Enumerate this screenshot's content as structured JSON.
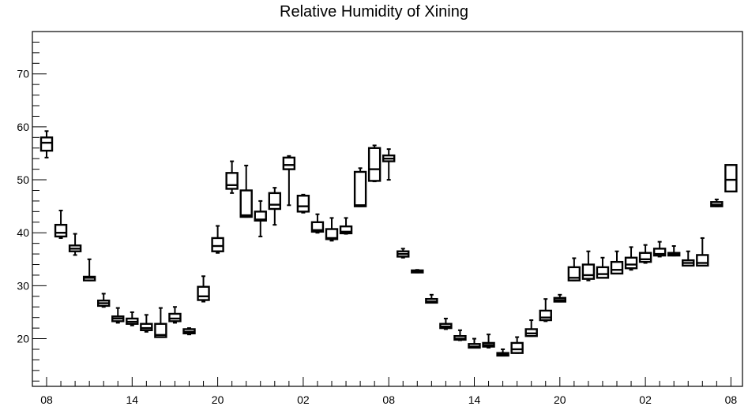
{
  "chart_data": {
    "type": "boxplot",
    "title": "Relative Humidity of Xining",
    "xlabel": "",
    "ylabel": "",
    "ylim": [
      11,
      78
    ],
    "yticks": [
      20,
      30,
      40,
      50,
      60,
      70
    ],
    "xticks": [
      {
        "x": 0,
        "label": "08"
      },
      {
        "x": 6,
        "label": "14"
      },
      {
        "x": 12,
        "label": "20"
      },
      {
        "x": 18,
        "label": "02"
      },
      {
        "x": 24,
        "label": "08"
      },
      {
        "x": 30,
        "label": "14"
      },
      {
        "x": 36,
        "label": "20"
      },
      {
        "x": 42,
        "label": "02"
      },
      {
        "x": 48,
        "label": "08"
      }
    ],
    "grid": false,
    "boxes": [
      {
        "x": 0,
        "whislo": 54.2,
        "q1": 55.5,
        "med": 57.0,
        "q3": 58.0,
        "whishi": 59.2
      },
      {
        "x": 1,
        "whislo": 39.0,
        "q1": 39.3,
        "med": 40.0,
        "q3": 41.5,
        "whishi": 44.2
      },
      {
        "x": 2,
        "whislo": 35.8,
        "q1": 36.5,
        "med": 37.0,
        "q3": 37.6,
        "whishi": 39.8
      },
      {
        "x": 3,
        "whislo": 31.0,
        "q1": 31.0,
        "med": 31.5,
        "q3": 31.7,
        "whishi": 35.0
      },
      {
        "x": 4,
        "whislo": 26.0,
        "q1": 26.2,
        "med": 26.7,
        "q3": 27.2,
        "whishi": 28.5
      },
      {
        "x": 5,
        "whislo": 23.0,
        "q1": 23.3,
        "med": 23.8,
        "q3": 24.2,
        "whishi": 25.8
      },
      {
        "x": 6,
        "whislo": 22.5,
        "q1": 22.8,
        "med": 23.2,
        "q3": 23.8,
        "whishi": 25.0
      },
      {
        "x": 7,
        "whislo": 21.3,
        "q1": 21.6,
        "med": 22.0,
        "q3": 22.8,
        "whishi": 24.5
      },
      {
        "x": 8,
        "whislo": 20.3,
        "q1": 20.3,
        "med": 20.7,
        "q3": 22.8,
        "whishi": 25.8
      },
      {
        "x": 9,
        "whislo": 23.0,
        "q1": 23.3,
        "med": 23.8,
        "q3": 24.7,
        "whishi": 26.0
      },
      {
        "x": 10,
        "whislo": 20.8,
        "q1": 21.0,
        "med": 21.3,
        "q3": 21.8,
        "whishi": 22.0
      },
      {
        "x": 11,
        "whislo": 27.0,
        "q1": 27.3,
        "med": 28.0,
        "q3": 29.8,
        "whishi": 31.8
      },
      {
        "x": 12,
        "whislo": 36.2,
        "q1": 36.5,
        "med": 37.5,
        "q3": 39.0,
        "whishi": 41.3
      },
      {
        "x": 13,
        "whislo": 47.5,
        "q1": 48.3,
        "med": 49.0,
        "q3": 51.3,
        "whishi": 53.5
      },
      {
        "x": 14,
        "whislo": 43.0,
        "q1": 43.0,
        "med": 43.3,
        "q3": 48.0,
        "whishi": 52.7
      },
      {
        "x": 15,
        "whislo": 39.3,
        "q1": 42.3,
        "med": 42.5,
        "q3": 44.0,
        "whishi": 46.0
      },
      {
        "x": 16,
        "whislo": 41.5,
        "q1": 44.5,
        "med": 45.3,
        "q3": 47.5,
        "whishi": 48.5
      },
      {
        "x": 17,
        "whislo": 45.2,
        "q1": 52.0,
        "med": 52.8,
        "q3": 54.2,
        "whishi": 54.5
      },
      {
        "x": 18,
        "whislo": 43.8,
        "q1": 44.0,
        "med": 45.0,
        "q3": 47.0,
        "whishi": 47.2
      },
      {
        "x": 19,
        "whislo": 40.0,
        "q1": 40.2,
        "med": 40.5,
        "q3": 42.0,
        "whishi": 43.5
      },
      {
        "x": 20,
        "whislo": 38.5,
        "q1": 38.8,
        "med": 39.0,
        "q3": 40.7,
        "whishi": 42.8
      },
      {
        "x": 21,
        "whislo": 39.8,
        "q1": 39.9,
        "med": 40.2,
        "q3": 41.2,
        "whishi": 42.8
      },
      {
        "x": 22,
        "whislo": 45.0,
        "q1": 45.0,
        "med": 45.2,
        "q3": 51.5,
        "whishi": 52.2
      },
      {
        "x": 23,
        "whislo": 49.7,
        "q1": 49.8,
        "med": 52.0,
        "q3": 56.0,
        "whishi": 56.5
      },
      {
        "x": 24,
        "whislo": 50.0,
        "q1": 53.5,
        "med": 54.0,
        "q3": 54.6,
        "whishi": 55.8
      },
      {
        "x": 25,
        "whislo": 35.3,
        "q1": 35.5,
        "med": 36.0,
        "q3": 36.5,
        "whishi": 37.0
      },
      {
        "x": 26,
        "whislo": 32.5,
        "q1": 32.5,
        "med": 32.7,
        "q3": 32.9,
        "whishi": 33.0
      },
      {
        "x": 27,
        "whislo": 26.8,
        "q1": 26.8,
        "med": 27.0,
        "q3": 27.5,
        "whishi": 28.3
      },
      {
        "x": 28,
        "whislo": 21.8,
        "q1": 22.0,
        "med": 22.3,
        "q3": 22.8,
        "whishi": 23.8
      },
      {
        "x": 29,
        "whislo": 19.7,
        "q1": 19.8,
        "med": 20.0,
        "q3": 20.5,
        "whishi": 21.6
      },
      {
        "x": 30,
        "whislo": 18.3,
        "q1": 18.3,
        "med": 18.5,
        "q3": 19.0,
        "whishi": 20.0
      },
      {
        "x": 31,
        "whislo": 18.3,
        "q1": 18.5,
        "med": 18.8,
        "q3": 19.2,
        "whishi": 20.8
      },
      {
        "x": 32,
        "whislo": 16.8,
        "q1": 16.8,
        "med": 17.0,
        "q3": 17.3,
        "whishi": 18.0
      },
      {
        "x": 33,
        "whislo": 17.3,
        "q1": 17.3,
        "med": 18.0,
        "q3": 19.2,
        "whishi": 20.3
      },
      {
        "x": 34,
        "whislo": 20.5,
        "q1": 20.5,
        "med": 21.0,
        "q3": 21.8,
        "whishi": 23.5
      },
      {
        "x": 35,
        "whislo": 23.3,
        "q1": 23.5,
        "med": 24.0,
        "q3": 25.3,
        "whishi": 27.5
      },
      {
        "x": 36,
        "whislo": 27.0,
        "q1": 27.0,
        "med": 27.3,
        "q3": 27.7,
        "whishi": 28.3
      },
      {
        "x": 37,
        "whislo": 31.0,
        "q1": 31.0,
        "med": 31.5,
        "q3": 33.5,
        "whishi": 35.2
      },
      {
        "x": 38,
        "whislo": 31.0,
        "q1": 31.3,
        "med": 32.0,
        "q3": 34.0,
        "whishi": 36.5
      },
      {
        "x": 39,
        "whislo": 31.5,
        "q1": 31.5,
        "med": 32.2,
        "q3": 33.5,
        "whishi": 35.3
      },
      {
        "x": 40,
        "whislo": 32.3,
        "q1": 32.3,
        "med": 33.0,
        "q3": 34.5,
        "whishi": 36.5
      },
      {
        "x": 41,
        "whislo": 33.0,
        "q1": 33.3,
        "med": 34.0,
        "q3": 35.3,
        "whishi": 37.3
      },
      {
        "x": 42,
        "whislo": 34.3,
        "q1": 34.5,
        "med": 35.0,
        "q3": 36.2,
        "whishi": 37.7
      },
      {
        "x": 43,
        "whislo": 35.5,
        "q1": 35.7,
        "med": 36.0,
        "q3": 37.0,
        "whishi": 38.3
      },
      {
        "x": 44,
        "whislo": 35.7,
        "q1": 35.7,
        "med": 36.0,
        "q3": 36.2,
        "whishi": 37.5
      },
      {
        "x": 45,
        "whislo": 33.8,
        "q1": 33.8,
        "med": 34.3,
        "q3": 34.8,
        "whishi": 36.5
      },
      {
        "x": 46,
        "whislo": 33.8,
        "q1": 33.8,
        "med": 34.3,
        "q3": 35.8,
        "whishi": 39.0
      },
      {
        "x": 47,
        "whislo": 45.0,
        "q1": 45.0,
        "med": 45.3,
        "q3": 45.8,
        "whishi": 46.3
      },
      {
        "x": 48,
        "whislo": 47.8,
        "q1": 47.8,
        "med": 50.0,
        "q3": 52.8,
        "whishi": 52.8
      }
    ]
  }
}
